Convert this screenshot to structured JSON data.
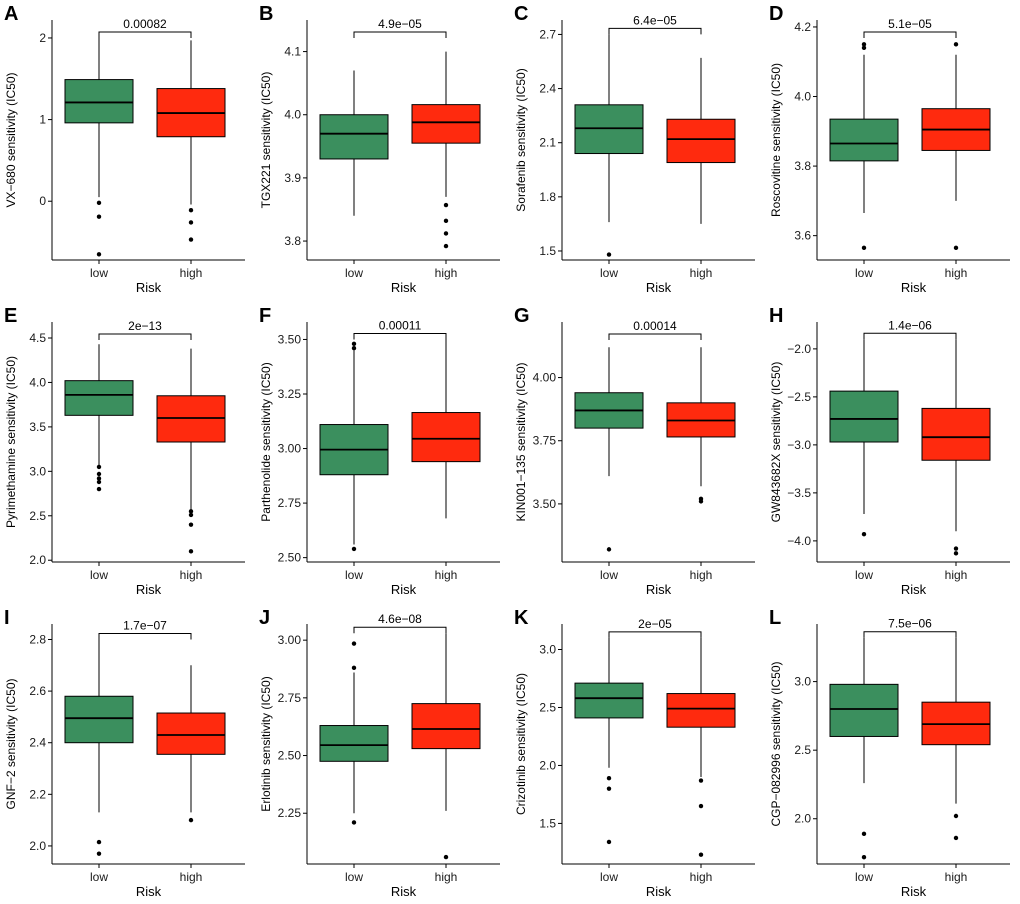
{
  "colors": {
    "low": "#3b8f5e",
    "high": "#ff2a0e",
    "axis": "#000000"
  },
  "chart_data": [
    {
      "type": "box",
      "panel": "A",
      "ylabel": "VX−680 sensitivity (IC50)",
      "xlabel": "Risk",
      "categories": [
        "low",
        "high"
      ],
      "pvalue": "0.00082",
      "ylim": [
        -0.72,
        2.22
      ],
      "yticks": [
        0,
        1,
        2
      ],
      "ytick_labels": [
        "0",
        "1",
        "2"
      ],
      "boxes": [
        {
          "group": "low",
          "q1": 0.96,
          "median": 1.21,
          "q3": 1.49,
          "whisker_low": 0.05,
          "whisker_high": 2.0,
          "outliers": [
            -0.02,
            -0.19,
            -0.65
          ]
        },
        {
          "group": "high",
          "q1": 0.79,
          "median": 1.08,
          "q3": 1.38,
          "whisker_low": -0.04,
          "whisker_high": 1.97,
          "outliers": [
            -0.11,
            -0.26,
            -0.47
          ]
        }
      ]
    },
    {
      "type": "box",
      "panel": "B",
      "ylabel": "TGX221 sensitivity (IC50)",
      "xlabel": "Risk",
      "categories": [
        "low",
        "high"
      ],
      "pvalue": "4.9e−05",
      "ylim": [
        3.77,
        4.15
      ],
      "yticks": [
        3.8,
        3.9,
        4.0,
        4.1
      ],
      "ytick_labels": [
        "3.8",
        "3.9",
        "4.0",
        "4.1"
      ],
      "boxes": [
        {
          "group": "low",
          "q1": 3.93,
          "median": 3.97,
          "q3": 4.0,
          "whisker_low": 3.84,
          "whisker_high": 4.07,
          "outliers": []
        },
        {
          "group": "high",
          "q1": 3.955,
          "median": 3.988,
          "q3": 4.016,
          "whisker_low": 3.87,
          "whisker_high": 4.1,
          "outliers": [
            3.857,
            3.832,
            3.812,
            3.792
          ]
        }
      ]
    },
    {
      "type": "box",
      "panel": "C",
      "ylabel": "Sorafenib sensitivity (IC50)",
      "xlabel": "Risk",
      "categories": [
        "low",
        "high"
      ],
      "pvalue": "6.4e−05",
      "ylim": [
        1.45,
        2.78
      ],
      "yticks": [
        1.5,
        1.8,
        2.1,
        2.4,
        2.7
      ],
      "ytick_labels": [
        "1.5",
        "1.8",
        "2.1",
        "2.4",
        "2.7"
      ],
      "boxes": [
        {
          "group": "low",
          "q1": 2.04,
          "median": 2.18,
          "q3": 2.31,
          "whisker_low": 1.66,
          "whisker_high": 2.7,
          "outliers": [
            1.48
          ]
        },
        {
          "group": "high",
          "q1": 1.99,
          "median": 2.12,
          "q3": 2.23,
          "whisker_low": 1.65,
          "whisker_high": 2.57,
          "outliers": []
        }
      ]
    },
    {
      "type": "box",
      "panel": "D",
      "ylabel": "Roscovitine sensitivity (IC50)",
      "xlabel": "Risk",
      "categories": [
        "low",
        "high"
      ],
      "pvalue": "5.1e−05",
      "ylim": [
        3.53,
        4.22
      ],
      "yticks": [
        3.6,
        3.8,
        4.0,
        4.2
      ],
      "ytick_labels": [
        "3.6",
        "3.8",
        "4.0",
        "4.2"
      ],
      "boxes": [
        {
          "group": "low",
          "q1": 3.815,
          "median": 3.865,
          "q3": 3.935,
          "whisker_low": 3.665,
          "whisker_high": 4.12,
          "outliers": [
            3.565,
            4.14,
            4.15
          ]
        },
        {
          "group": "high",
          "q1": 3.845,
          "median": 3.905,
          "q3": 3.965,
          "whisker_low": 3.7,
          "whisker_high": 4.12,
          "outliers": [
            3.565,
            4.15
          ]
        }
      ]
    },
    {
      "type": "box",
      "panel": "E",
      "ylabel": "Pyrimethamine sensitivity (IC50)",
      "xlabel": "Risk",
      "categories": [
        "low",
        "high"
      ],
      "pvalue": "2e−13",
      "ylim": [
        1.98,
        4.68
      ],
      "yticks": [
        2.0,
        2.5,
        3.0,
        3.5,
        4.0,
        4.5
      ],
      "ytick_labels": [
        "2.0",
        "2.5",
        "3.0",
        "3.5",
        "4.0",
        "4.5"
      ],
      "boxes": [
        {
          "group": "low",
          "q1": 3.63,
          "median": 3.86,
          "q3": 4.02,
          "whisker_low": 3.07,
          "whisker_high": 4.43,
          "outliers": [
            3.05,
            2.97,
            2.92,
            2.88,
            2.8
          ]
        },
        {
          "group": "high",
          "q1": 3.33,
          "median": 3.6,
          "q3": 3.85,
          "whisker_low": 2.56,
          "whisker_high": 4.38,
          "outliers": [
            2.55,
            2.51,
            2.4,
            2.1
          ]
        }
      ]
    },
    {
      "type": "box",
      "panel": "F",
      "ylabel": "Parthenolide sensitivity (IC50)",
      "xlabel": "Risk",
      "categories": [
        "low",
        "high"
      ],
      "pvalue": "0.00011",
      "ylim": [
        2.48,
        3.58
      ],
      "yticks": [
        2.5,
        2.75,
        3.0,
        3.25,
        3.5
      ],
      "ytick_labels": [
        "2.50",
        "2.75",
        "3.00",
        "3.25",
        "3.50"
      ],
      "boxes": [
        {
          "group": "low",
          "q1": 2.88,
          "median": 2.995,
          "q3": 3.11,
          "whisker_low": 2.56,
          "whisker_high": 3.45,
          "outliers": [
            2.54,
            3.46,
            3.48
          ]
        },
        {
          "group": "high",
          "q1": 2.94,
          "median": 3.045,
          "q3": 3.165,
          "whisker_low": 2.68,
          "whisker_high": 3.5,
          "outliers": []
        }
      ]
    },
    {
      "type": "box",
      "panel": "G",
      "ylabel": "KIN001−135 sensitivity (IC50)",
      "xlabel": "Risk",
      "categories": [
        "low",
        "high"
      ],
      "pvalue": "0.00014",
      "ylim": [
        3.27,
        4.22
      ],
      "yticks": [
        3.5,
        3.75,
        4.0
      ],
      "ytick_labels": [
        "3.50",
        "3.75",
        "4.00"
      ],
      "boxes": [
        {
          "group": "low",
          "q1": 3.8,
          "median": 3.87,
          "q3": 3.94,
          "whisker_low": 3.61,
          "whisker_high": 4.12,
          "outliers": [
            3.32
          ]
        },
        {
          "group": "high",
          "q1": 3.765,
          "median": 3.83,
          "q3": 3.9,
          "whisker_low": 3.57,
          "whisker_high": 4.12,
          "outliers": [
            3.52,
            3.51
          ]
        }
      ]
    },
    {
      "type": "box",
      "panel": "H",
      "ylabel": "GW843682X sensitivity (IC50)",
      "xlabel": "Risk",
      "categories": [
        "low",
        "high"
      ],
      "pvalue": "1.4e−06",
      "ylim": [
        -4.22,
        -1.72
      ],
      "yticks": [
        -4.0,
        -3.5,
        -3.0,
        -2.5,
        -2.0
      ],
      "ytick_labels": [
        "−4.0",
        "−3.5",
        "−3.0",
        "−2.5",
        "−2.0"
      ],
      "boxes": [
        {
          "group": "low",
          "q1": -2.97,
          "median": -2.73,
          "q3": -2.44,
          "whisker_low": -3.72,
          "whisker_high": -1.9,
          "outliers": [
            -3.93
          ]
        },
        {
          "group": "high",
          "q1": -3.16,
          "median": -2.92,
          "q3": -2.62,
          "whisker_low": -3.9,
          "whisker_high": -1.9,
          "outliers": [
            -4.08,
            -4.13
          ]
        }
      ]
    },
    {
      "type": "box",
      "panel": "I",
      "ylabel": "GNF−2 sensitivity (IC50)",
      "xlabel": "Risk",
      "categories": [
        "low",
        "high"
      ],
      "pvalue": "1.7e−07",
      "ylim": [
        1.93,
        2.86
      ],
      "yticks": [
        2.0,
        2.2,
        2.4,
        2.6,
        2.8
      ],
      "ytick_labels": [
        "2.0",
        "2.2",
        "2.4",
        "2.6",
        "2.8"
      ],
      "boxes": [
        {
          "group": "low",
          "q1": 2.4,
          "median": 2.495,
          "q3": 2.58,
          "whisker_low": 2.13,
          "whisker_high": 2.8,
          "outliers": [
            2.015,
            1.97
          ]
        },
        {
          "group": "high",
          "q1": 2.355,
          "median": 2.43,
          "q3": 2.515,
          "whisker_low": 2.13,
          "whisker_high": 2.7,
          "outliers": [
            2.1
          ]
        }
      ]
    },
    {
      "type": "box",
      "panel": "J",
      "ylabel": "Erlotinib sensitivity (IC50)",
      "xlabel": "Risk",
      "categories": [
        "low",
        "high"
      ],
      "pvalue": "4.6e−08",
      "ylim": [
        2.03,
        3.07
      ],
      "yticks": [
        2.25,
        2.5,
        2.75,
        3.0
      ],
      "ytick_labels": [
        "2.25",
        "2.50",
        "2.75",
        "3.00"
      ],
      "boxes": [
        {
          "group": "low",
          "q1": 2.475,
          "median": 2.545,
          "q3": 2.63,
          "whisker_low": 2.25,
          "whisker_high": 2.86,
          "outliers": [
            2.985,
            2.88,
            2.21
          ]
        },
        {
          "group": "high",
          "q1": 2.53,
          "median": 2.615,
          "q3": 2.725,
          "whisker_low": 2.26,
          "whisker_high": 3.03,
          "outliers": [
            2.06
          ]
        }
      ]
    },
    {
      "type": "box",
      "panel": "K",
      "ylabel": "Crizotinib sensitivity (IC50)",
      "xlabel": "Risk",
      "categories": [
        "low",
        "high"
      ],
      "pvalue": "2e−05",
      "ylim": [
        1.15,
        3.22
      ],
      "yticks": [
        1.5,
        2.0,
        2.5,
        3.0
      ],
      "ytick_labels": [
        "1.5",
        "2.0",
        "2.5",
        "3.0"
      ],
      "boxes": [
        {
          "group": "low",
          "q1": 2.41,
          "median": 2.58,
          "q3": 2.71,
          "whisker_low": 1.98,
          "whisker_high": 3.1,
          "outliers": [
            1.89,
            1.8,
            1.34
          ]
        },
        {
          "group": "high",
          "q1": 2.33,
          "median": 2.49,
          "q3": 2.62,
          "whisker_low": 1.9,
          "whisker_high": 3.1,
          "outliers": [
            1.87,
            1.65,
            1.23
          ]
        }
      ]
    },
    {
      "type": "box",
      "panel": "L",
      "ylabel": "CGP−082996 sensitivity (IC50)",
      "xlabel": "Risk",
      "categories": [
        "low",
        "high"
      ],
      "pvalue": "7.5e−06",
      "ylim": [
        1.67,
        3.42
      ],
      "yticks": [
        2.0,
        2.5,
        3.0
      ],
      "ytick_labels": [
        "2.0",
        "2.5",
        "3.0"
      ],
      "boxes": [
        {
          "group": "low",
          "q1": 2.6,
          "median": 2.8,
          "q3": 2.98,
          "whisker_low": 2.26,
          "whisker_high": 3.32,
          "outliers": [
            1.89,
            1.72
          ]
        },
        {
          "group": "high",
          "q1": 2.54,
          "median": 2.69,
          "q3": 2.85,
          "whisker_low": 2.11,
          "whisker_high": 3.32,
          "outliers": [
            2.02,
            1.86
          ]
        }
      ]
    }
  ]
}
